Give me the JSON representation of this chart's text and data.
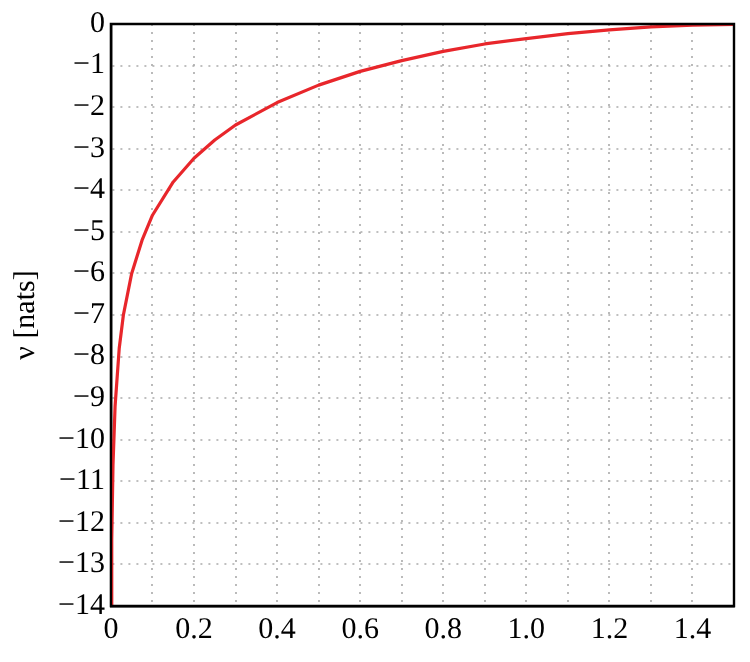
{
  "chart_data": {
    "type": "line",
    "ylabel": "ν [nats]",
    "x": [
      0.0009,
      0.002,
      0.005,
      0.01,
      0.02,
      0.03,
      0.05,
      0.075,
      0.1,
      0.15,
      0.2,
      0.25,
      0.3,
      0.4,
      0.5,
      0.6,
      0.7,
      0.8,
      0.9,
      1.0,
      1.1,
      1.2,
      1.3,
      1.4,
      1.5
    ],
    "series": [
      {
        "color": "#e8262b",
        "values": [
          -14,
          -12.4,
          -10.6,
          -9.2,
          -7.8,
          -7.0,
          -6.0,
          -5.2,
          -4.6,
          -3.8,
          -3.23,
          -2.79,
          -2.43,
          -1.89,
          -1.47,
          -1.14,
          -0.88,
          -0.66,
          -0.48,
          -0.35,
          -0.23,
          -0.14,
          -0.07,
          -0.03,
          -0.01
        ]
      }
    ],
    "xlim": [
      0,
      1.5
    ],
    "xticks": [
      0,
      {
        "value": 0.1,
        "label": null
      },
      {
        "value": 0.2,
        "label": "0.2"
      },
      {
        "value": 0.3,
        "label": null
      },
      {
        "value": 0.4,
        "label": "0.4"
      },
      {
        "value": 0.5,
        "label": null
      },
      {
        "value": 0.6,
        "label": "0.6"
      },
      {
        "value": 0.7,
        "label": null
      },
      {
        "value": 0.8,
        "label": "0.8"
      },
      {
        "value": 0.9,
        "label": null
      },
      {
        "value": 1.0,
        "label": "1.0"
      },
      {
        "value": 1.1,
        "label": null
      },
      {
        "value": 1.2,
        "label": "1.2"
      },
      {
        "value": 1.3,
        "label": null
      },
      {
        "value": 1.4,
        "label": "1.4"
      }
    ],
    "ylim": [
      -14,
      0
    ],
    "yticks": [
      {
        "value": -14,
        "label": "−14"
      },
      {
        "value": -13,
        "label": "−13"
      },
      {
        "value": -12,
        "label": "−12"
      },
      {
        "value": -11,
        "label": "−11"
      },
      {
        "value": -10,
        "label": "−10"
      },
      {
        "value": -9,
        "label": "−9"
      },
      {
        "value": -8,
        "label": "−8"
      },
      {
        "value": -7,
        "label": "−7"
      },
      {
        "value": -6,
        "label": "−6"
      },
      {
        "value": -5,
        "label": "−5"
      },
      {
        "value": -4,
        "label": "−4"
      },
      {
        "value": -3,
        "label": "−3"
      },
      {
        "value": -2,
        "label": "−2"
      },
      {
        "value": -1,
        "label": "−1"
      },
      0
    ],
    "grid": true,
    "legend": false,
    "marker": "none",
    "line_style": "solid"
  }
}
